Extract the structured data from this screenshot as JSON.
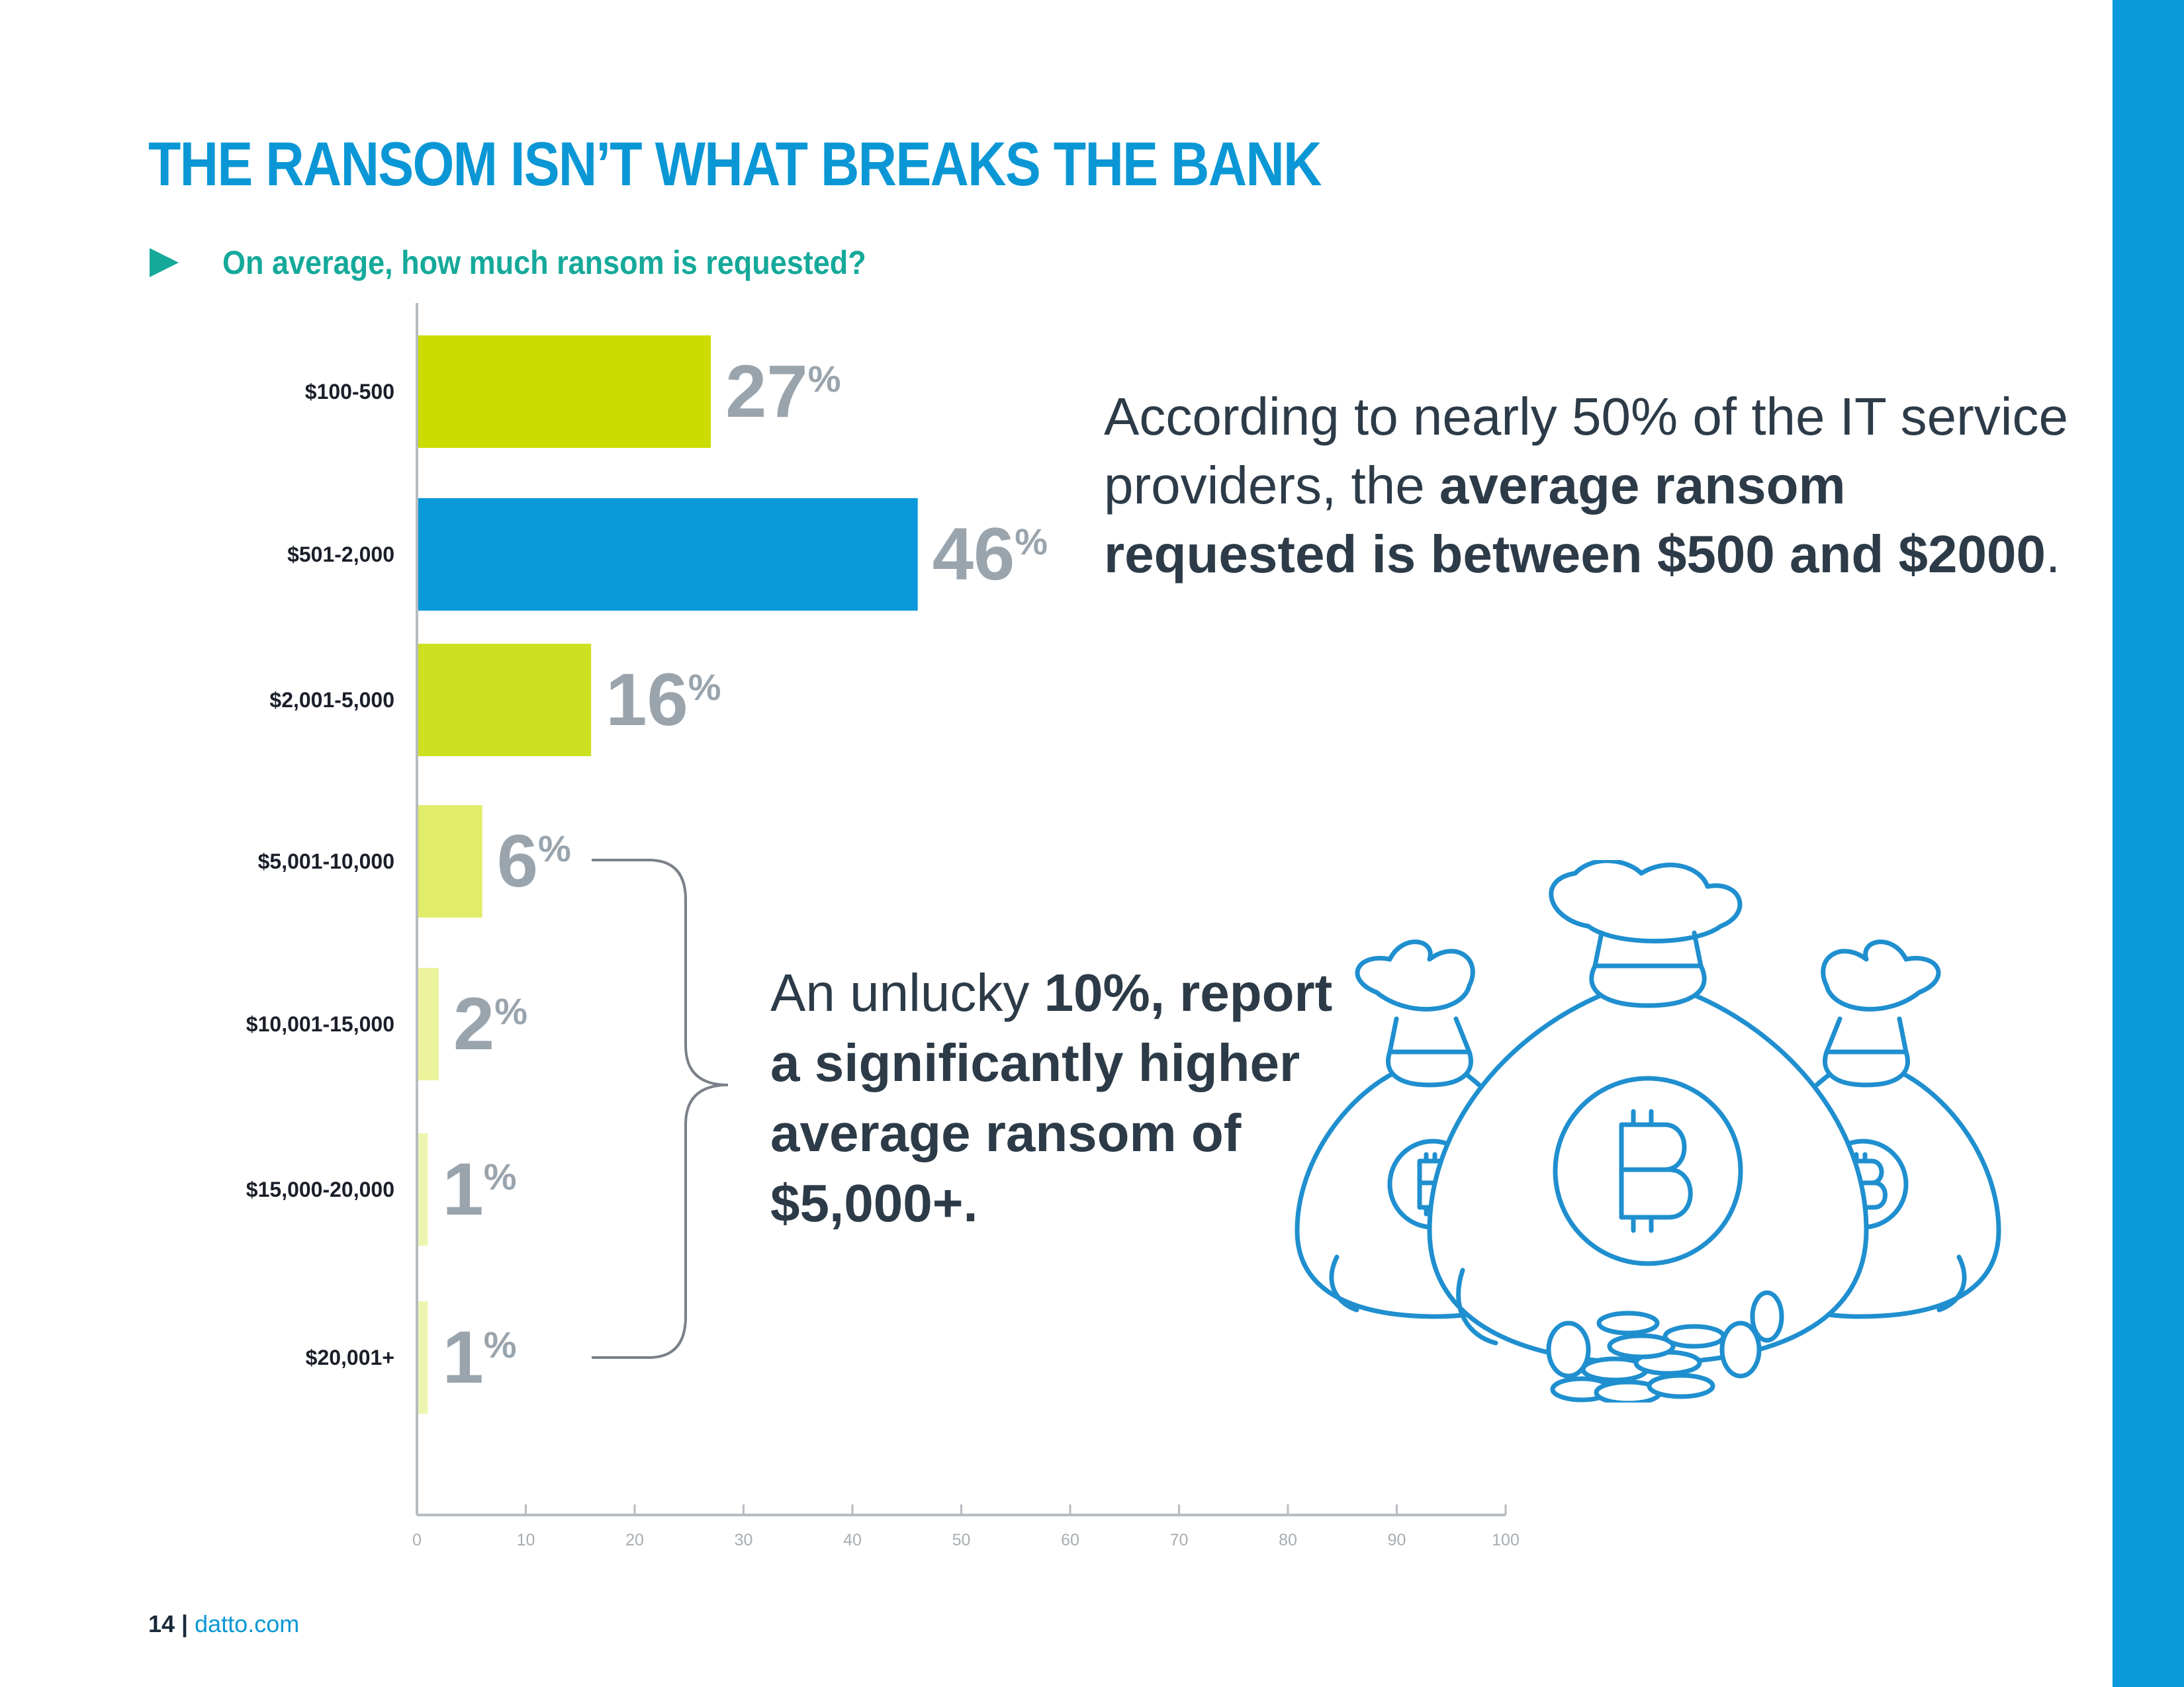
{
  "title": "THE RANSOM ISN’T WHAT BREAKS THE BANK",
  "question": "On average, how much ransom is requested?",
  "chart_data": {
    "type": "bar",
    "orientation": "horizontal",
    "categories": [
      "$100-500",
      "$501-2,000",
      "$2,001-5,000",
      "$5,001-10,000",
      "$10,001-15,000",
      "$15,000-20,000",
      "$20,001+"
    ],
    "values": [
      27,
      46,
      16,
      6,
      2,
      1,
      1
    ],
    "value_labels": [
      "27",
      "46",
      "16",
      "6",
      "2",
      "1",
      "1"
    ],
    "value_suffix": "%",
    "xlim": [
      0,
      100
    ],
    "xticks": [
      0,
      10,
      20,
      30,
      40,
      50,
      60,
      70,
      80,
      90,
      100
    ],
    "bar_colors": [
      "#ccdc00",
      "#0a99da",
      "#cde022",
      "#e0ec6a",
      "#ecf39d",
      "#eef5b0",
      "#eef5b0"
    ],
    "highlight_category": "$501-2,000",
    "grid": false
  },
  "callout_1": {
    "pre": "According to nearly 50% of the IT service providers, the ",
    "bold": "average ransom requested is between $500 and $2000",
    "post": "."
  },
  "callout_2": {
    "pre": "An unlucky ",
    "bold1": "10%",
    "mid": ", ",
    "bold2": "report a significantly higher average ransom of $5,000+."
  },
  "footer": {
    "page": "14",
    "separator": " | ",
    "site": "datto.com"
  },
  "colors": {
    "accent": "#0b97d5",
    "teal": "#15a99a",
    "text_dark": "#2d3b48",
    "value_gray": "#9aa4ad"
  },
  "illustration": {
    "icon": "bitcoin-money-bags-icon"
  }
}
